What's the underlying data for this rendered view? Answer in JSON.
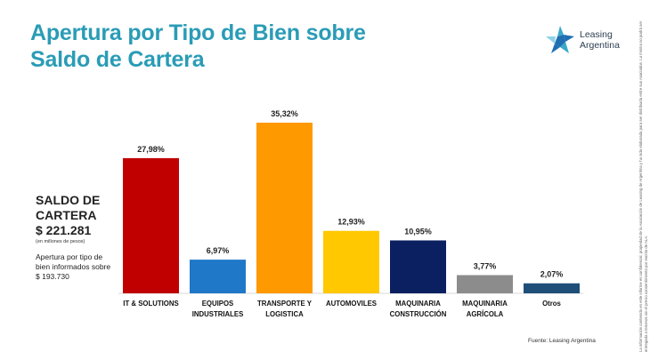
{
  "header": {
    "title_line1": "Apertura por Tipo de Bien sobre",
    "title_line2": "Saldo de Cartera"
  },
  "logo": {
    "name_line1": "Leasing",
    "name_line2": "Argentina",
    "icon": "star-logo-icon",
    "colors": [
      "#1f6fb2",
      "#39a9c9",
      "#8ed3e6"
    ]
  },
  "summary": {
    "heading_line1": "SALDO DE",
    "heading_line2": "CARTERA",
    "amount": "$ 221.281",
    "unit": "(en millones de pesos)",
    "note_line1": "Apertura por tipo de",
    "note_line2": "bien informados sobre",
    "note_line3": "$ 193.730"
  },
  "chart_data": {
    "type": "bar",
    "categories": [
      "IT & SOLUTIONS",
      "EQUIPOS INDUSTRIALES",
      "TRANSPORTE Y LOGISTICA",
      "AUTOMOVILES",
      "MAQUINARIA CONSTRUCCIÓN",
      "MAQUINARIA AGRÍCOLA",
      "Otros"
    ],
    "category_lines": [
      [
        "IT & SOLUTIONS"
      ],
      [
        "EQUIPOS",
        "INDUSTRIALES"
      ],
      [
        "TRANSPORTE Y",
        "LOGISTICA"
      ],
      [
        "AUTOMOVILES"
      ],
      [
        "MAQUINARIA",
        "CONSTRUCCIÓN"
      ],
      [
        "MAQUINARIA",
        "AGRÍCOLA"
      ],
      [
        "Otros"
      ]
    ],
    "values": [
      27.98,
      6.97,
      35.32,
      12.93,
      10.95,
      3.77,
      2.07
    ],
    "value_labels": [
      "27,98%",
      "6,97%",
      "35,32%",
      "12,93%",
      "10,95%",
      "3,77%",
      "2,07%"
    ],
    "colors": [
      "#c00000",
      "#1f78c8",
      "#ff9900",
      "#ffc800",
      "#0b2060",
      "#8c8c8c",
      "#1f4e79"
    ],
    "ylim": [
      0,
      35.32
    ],
    "grid": false,
    "legend": "none"
  },
  "footer": {
    "source": "Fuente: Leasing Argentina",
    "disclaimer": "La información contenida en este informe es confidencial, propiedad de la Asociación de Leasing de Argentina y ha sido elaborada para ser distribuida entre sus Asociados. La misma no podrá ser entregada a terceros sin el previo consentimiento por escrito de ALA."
  }
}
